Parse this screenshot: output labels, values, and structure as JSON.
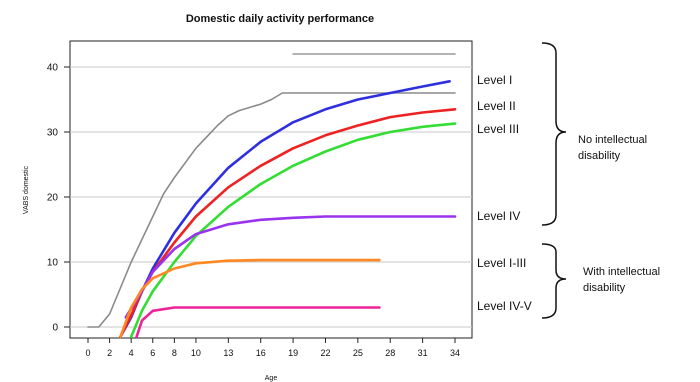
{
  "chart_data": {
    "type": "line",
    "title": "Domestic daily activity performance",
    "xlabel": "Age",
    "ylabel": "VABS domestic",
    "x_ticks": [
      "0",
      "2",
      "4",
      "6",
      "8",
      "10",
      "13",
      "16",
      "19",
      "22",
      "25",
      "28",
      "31",
      "34"
    ],
    "y_ticks": [
      0,
      10,
      20,
      30,
      40
    ],
    "xlim": [
      0,
      34
    ],
    "ylim": [
      -1.5,
      44
    ],
    "grid": "horizontal",
    "series": [
      {
        "color": "#8a8a8a",
        "points": [
          [
            0,
            0
          ],
          [
            1,
            0
          ],
          [
            2,
            2
          ],
          [
            3,
            6
          ],
          [
            4,
            10
          ],
          [
            5,
            13.5
          ],
          [
            6,
            17
          ],
          [
            7,
            20.5
          ],
          [
            8,
            23
          ],
          [
            10,
            27.5
          ],
          [
            12,
            31
          ],
          [
            13,
            32.5
          ],
          [
            14,
            33.3
          ],
          [
            16,
            34.3
          ],
          [
            17,
            35
          ],
          [
            18,
            36
          ],
          [
            19,
            36
          ],
          [
            22,
            36
          ],
          [
            25,
            36
          ],
          [
            28,
            36
          ],
          [
            31,
            36
          ],
          [
            34,
            36
          ]
        ]
      },
      {
        "color": "#9a9a9a",
        "points": [
          [
            19,
            42
          ],
          [
            34,
            42
          ]
        ]
      },
      {
        "color": "#2f2fe0",
        "points": [
          [
            3,
            -1.5
          ],
          [
            4,
            1.5
          ],
          [
            5,
            5.5
          ],
          [
            6,
            9
          ],
          [
            8,
            14.5
          ],
          [
            10,
            19
          ],
          [
            13,
            24.5
          ],
          [
            16,
            28.5
          ],
          [
            19,
            31.5
          ],
          [
            22,
            33.5
          ],
          [
            25,
            35
          ],
          [
            28,
            36
          ],
          [
            31,
            37
          ],
          [
            33.5,
            37.8
          ]
        ]
      },
      {
        "color": "#ee2222",
        "points": [
          [
            3,
            -1.5
          ],
          [
            4,
            1.8
          ],
          [
            5,
            5.5
          ],
          [
            6,
            8.5
          ],
          [
            8,
            13
          ],
          [
            10,
            17
          ],
          [
            13,
            21.5
          ],
          [
            16,
            24.8
          ],
          [
            19,
            27.5
          ],
          [
            22,
            29.5
          ],
          [
            25,
            31
          ],
          [
            28,
            32.3
          ],
          [
            31,
            33
          ],
          [
            34,
            33.5
          ]
        ]
      },
      {
        "color": "#33dd33",
        "points": [
          [
            4,
            -1.5
          ],
          [
            5,
            2.5
          ],
          [
            6,
            5.5
          ],
          [
            8,
            10
          ],
          [
            10,
            14
          ],
          [
            13,
            18.5
          ],
          [
            16,
            22
          ],
          [
            19,
            24.8
          ],
          [
            22,
            27
          ],
          [
            25,
            28.8
          ],
          [
            28,
            30
          ],
          [
            31,
            30.8
          ],
          [
            34,
            31.3
          ]
        ]
      },
      {
        "color": "#9933ee",
        "points": [
          [
            3.5,
            1.5
          ],
          [
            5,
            5.5
          ],
          [
            6,
            8.5
          ],
          [
            8,
            12
          ],
          [
            10,
            14.3
          ],
          [
            13,
            15.8
          ],
          [
            16,
            16.5
          ],
          [
            19,
            16.8
          ],
          [
            22,
            17
          ],
          [
            25,
            17
          ],
          [
            28,
            17
          ],
          [
            31,
            17
          ],
          [
            34,
            17
          ]
        ]
      },
      {
        "color": "#ff8822",
        "points": [
          [
            3,
            -1.5
          ],
          [
            4,
            3
          ],
          [
            5,
            5.8
          ],
          [
            6,
            7.5
          ],
          [
            8,
            9
          ],
          [
            10,
            9.8
          ],
          [
            13,
            10.2
          ],
          [
            16,
            10.3
          ],
          [
            19,
            10.3
          ],
          [
            22,
            10.3
          ],
          [
            25,
            10.3
          ],
          [
            27,
            10.3
          ]
        ]
      },
      {
        "color": "#ee2299",
        "points": [
          [
            4.5,
            -1.5
          ],
          [
            5,
            1
          ],
          [
            6,
            2.5
          ],
          [
            8,
            3
          ],
          [
            10,
            3
          ],
          [
            13,
            3
          ],
          [
            16,
            3
          ],
          [
            19,
            3
          ],
          [
            22,
            3
          ],
          [
            25,
            3
          ],
          [
            27,
            3
          ]
        ]
      }
    ],
    "level_labels": [
      "Level I",
      "Level II",
      "Level III",
      "Level IV",
      "Level I-III",
      "Level IV-V"
    ],
    "groups": [
      {
        "label_line1": "No intellectual",
        "label_line2": "disability"
      },
      {
        "label_line1": "With intellectual",
        "label_line2": "disability"
      }
    ]
  }
}
